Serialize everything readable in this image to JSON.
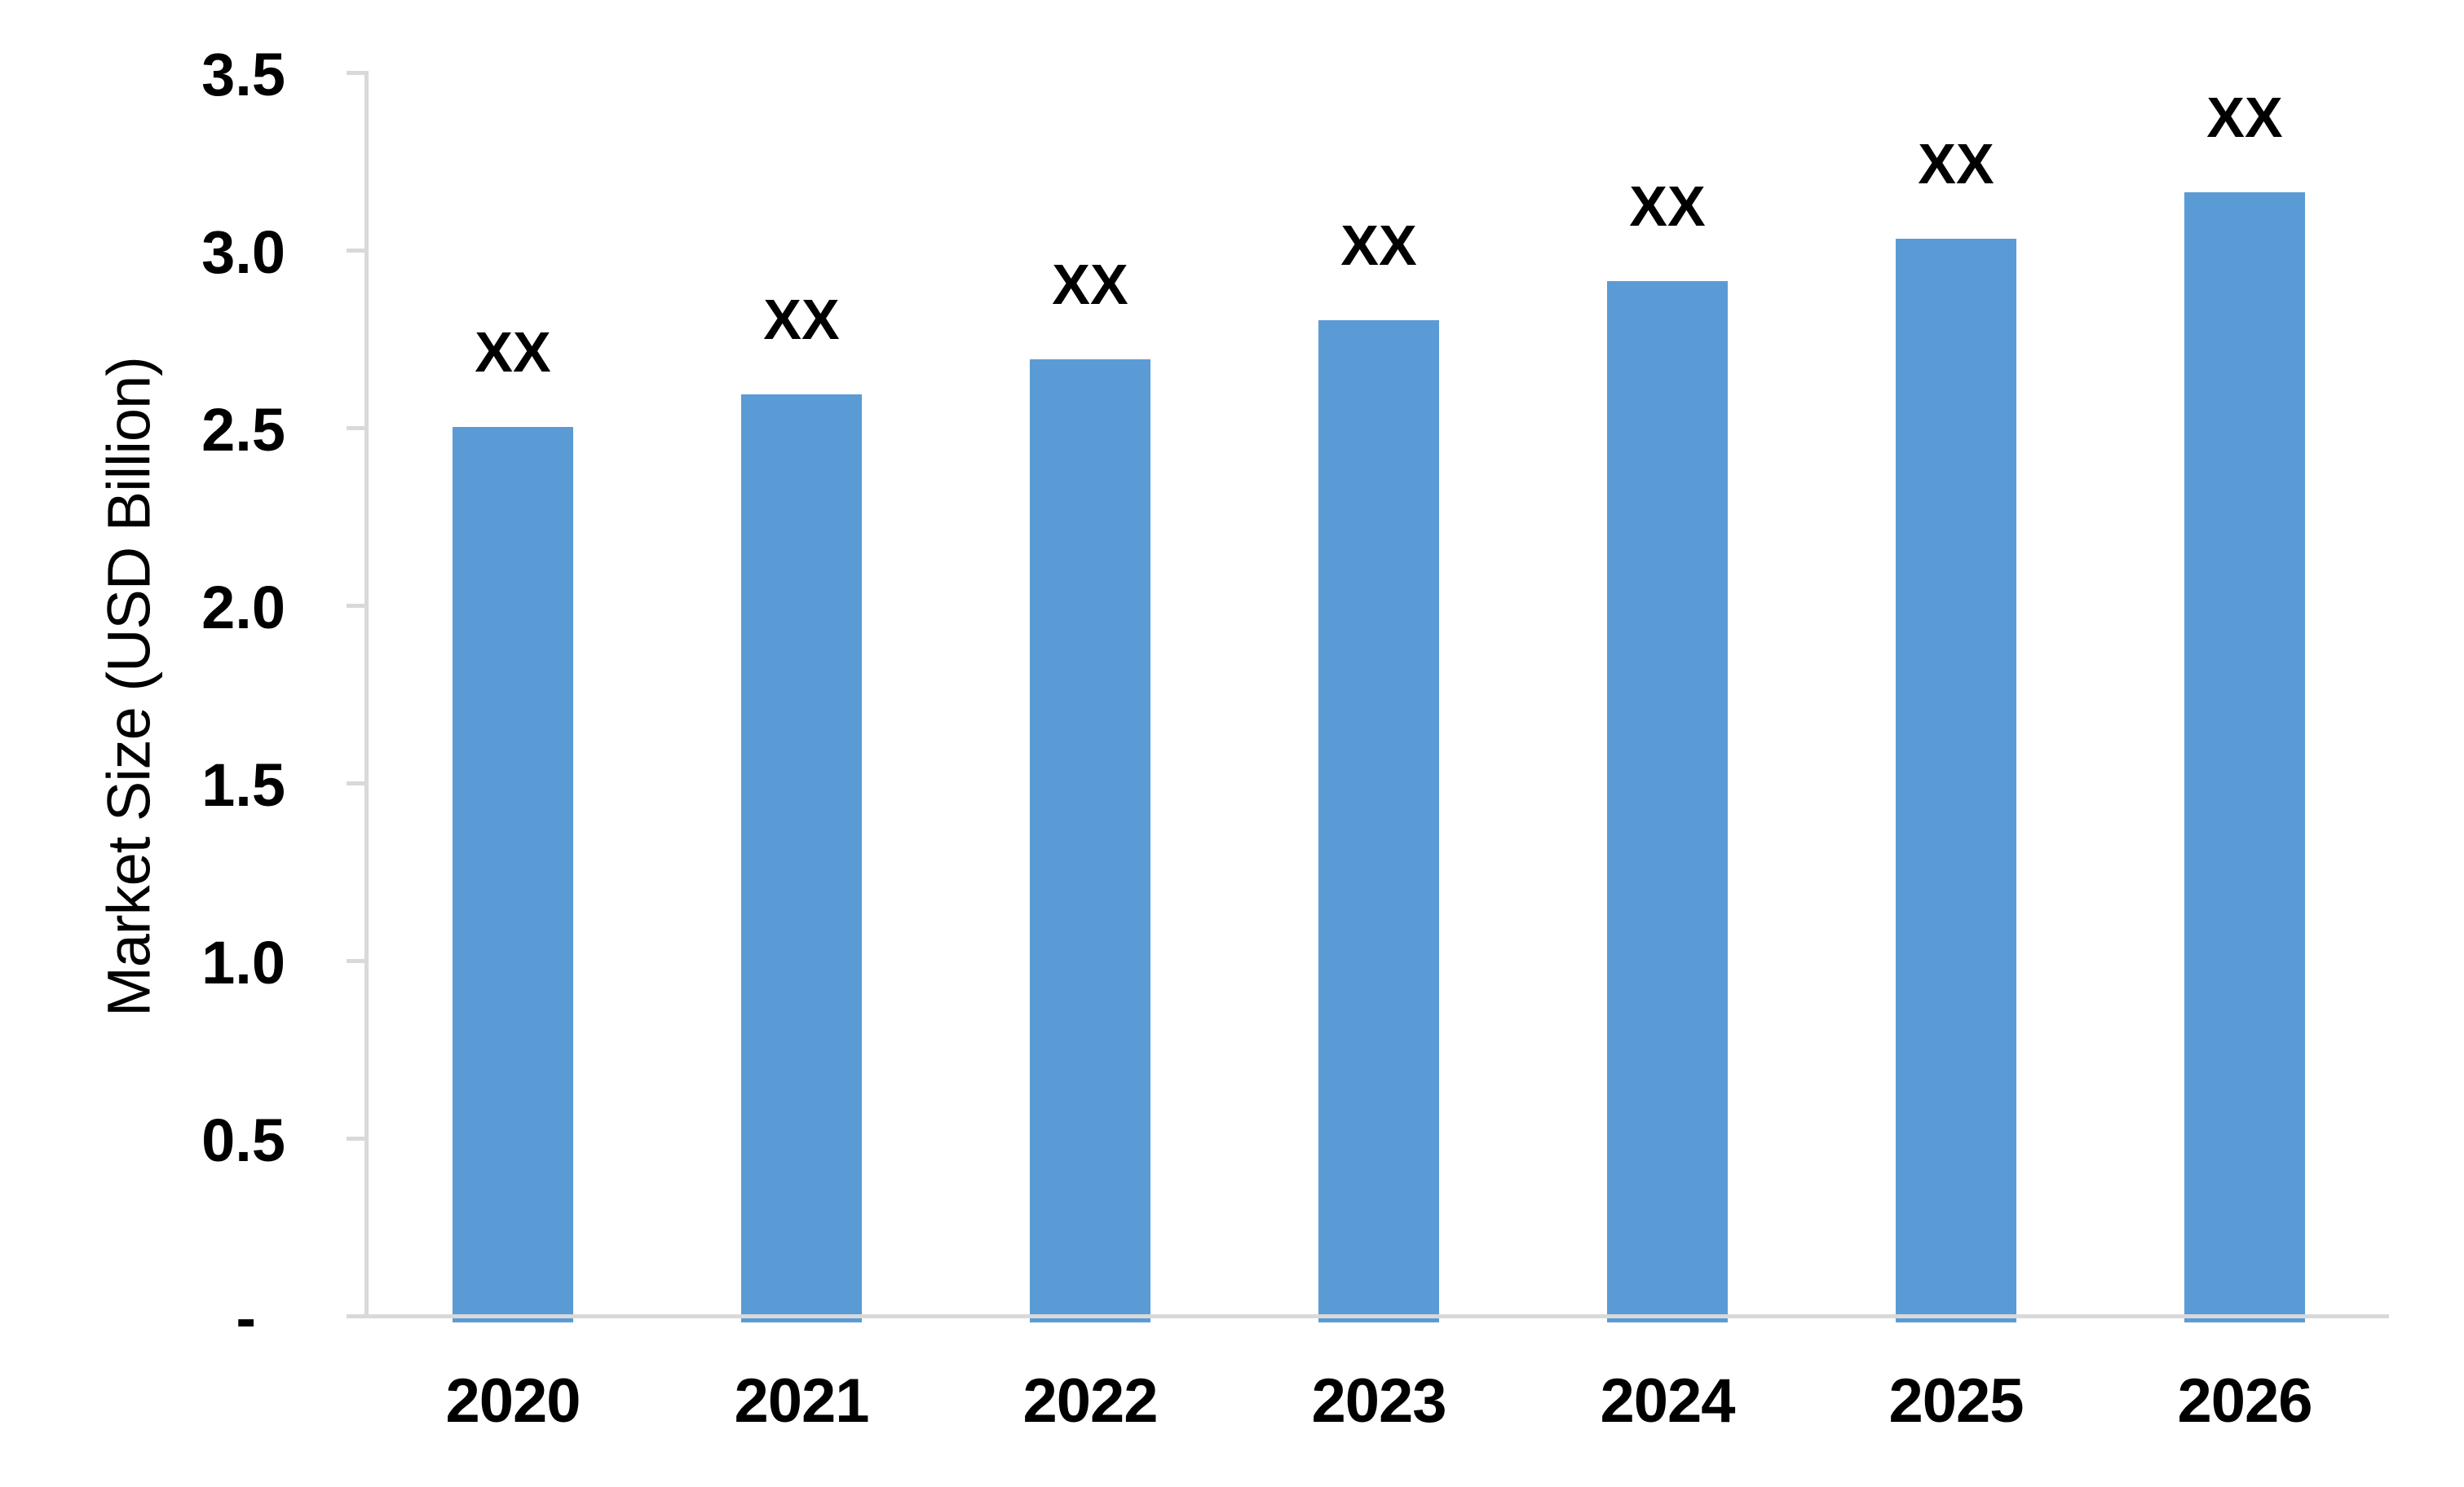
{
  "chart_data": {
    "type": "bar",
    "title": "",
    "xlabel": "",
    "ylabel": "Market Size (USD Billion)",
    "categories": [
      "2020",
      "2021",
      "2022",
      "2023",
      "2024",
      "2025",
      "2026"
    ],
    "values": [
      2.51,
      2.6,
      2.7,
      2.81,
      2.92,
      3.04,
      3.17
    ],
    "bar_labels": [
      "XX",
      "XX",
      "XX",
      "XX",
      "XX",
      "XX",
      "XX"
    ],
    "ylim": [
      0,
      3.5
    ],
    "ytick_step": 0.5,
    "ytick_labels": [
      "-",
      "0.5",
      "1.0",
      "1.5",
      "2.0",
      "2.5",
      "3.0",
      "3.5"
    ],
    "grid": false,
    "legend": "none",
    "bar_color": "#5B9BD5",
    "axis_color": "#D9D9D9",
    "text_color": "#000000"
  }
}
